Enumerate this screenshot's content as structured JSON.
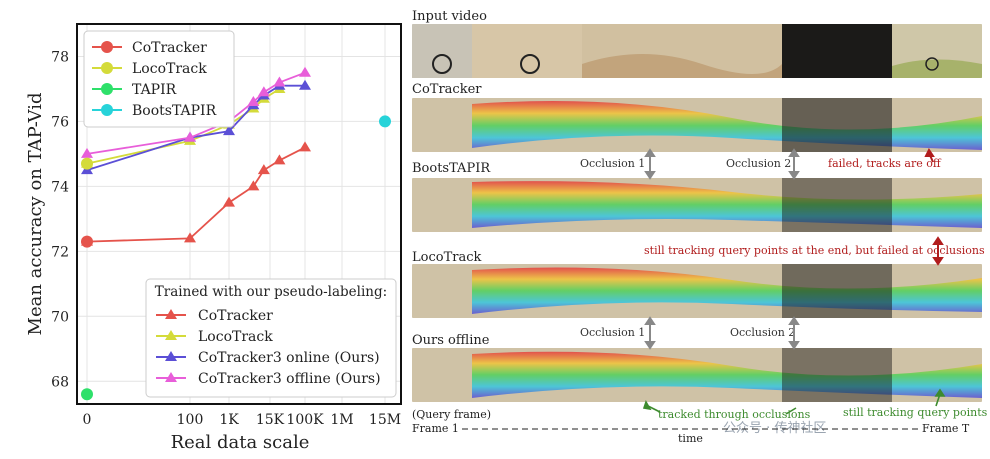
{
  "chart_data": {
    "type": "line",
    "ylabel": "Mean accuracy on TAP-Vid",
    "xlabel": "Real data scale",
    "xtick_labels": [
      "0",
      "100",
      "1K",
      "15K",
      "100K",
      "1M",
      "15M"
    ],
    "ytick_labels": [
      "68",
      "70",
      "72",
      "74",
      "76",
      "78"
    ],
    "ylim": [
      67.3,
      79
    ],
    "grid": true,
    "baselines": [
      {
        "name": "CoTracker",
        "color": "#e5534b",
        "x": 0,
        "y": 72.3
      },
      {
        "name": "LocoTrack",
        "color": "#d4db3a",
        "x": 0,
        "y": 74.7
      },
      {
        "name": "TAPIR",
        "color": "#2ee06a",
        "x": 0,
        "y": 67.6
      },
      {
        "name": "BootsTAPIR",
        "color": "#27d3d9",
        "x": 15000000,
        "y": 76.0
      }
    ],
    "legend_title": "Trained with our pseudo-labeling:",
    "series": [
      {
        "name": "CoTracker",
        "color": "#e5534b",
        "x": [
          0,
          100,
          1000,
          5000,
          10000,
          25000,
          100000
        ],
        "y": [
          72.3,
          72.4,
          73.5,
          74.0,
          74.5,
          74.8,
          75.2
        ]
      },
      {
        "name": "LocoTrack",
        "color": "#d4db3a",
        "x": [
          0,
          100,
          1000,
          5000,
          10000,
          25000
        ],
        "y": [
          74.7,
          75.4,
          75.9,
          76.4,
          76.7,
          77.0
        ]
      },
      {
        "name": "CoTracker3 online (Ours)",
        "color": "#5b4fd6",
        "x": [
          0,
          100,
          1000,
          5000,
          10000,
          25000,
          100000
        ],
        "y": [
          74.5,
          75.5,
          75.7,
          76.5,
          76.8,
          77.1,
          77.1
        ]
      },
      {
        "name": "CoTracker3 offline (Ours)",
        "color": "#e85ed9",
        "x": [
          0,
          100,
          1000,
          5000,
          10000,
          25000,
          100000
        ],
        "y": [
          75.0,
          75.5,
          76.0,
          76.6,
          76.9,
          77.2,
          77.5
        ]
      }
    ]
  },
  "figure": {
    "rows": [
      {
        "label": "Input video"
      },
      {
        "label": "CoTracker"
      },
      {
        "label": "BootsTAPIR"
      },
      {
        "label": "LocoTrack"
      },
      {
        "label": "Ours offline"
      }
    ],
    "annotations": {
      "occlusion1": "Occlusion 1",
      "occlusion2": "Occlusion 2",
      "failed": "failed, tracks are off",
      "still_tracking_fail": "still tracking query points at the end, but failed at occlusions",
      "tracked_through": "tracked through occlusions",
      "still_tracking": "still tracking query points",
      "query_frame": "(Query frame)",
      "frame1": "Frame 1",
      "frameT": "Frame T",
      "time": "time"
    },
    "watermark": "公众号 · 传神社区"
  }
}
